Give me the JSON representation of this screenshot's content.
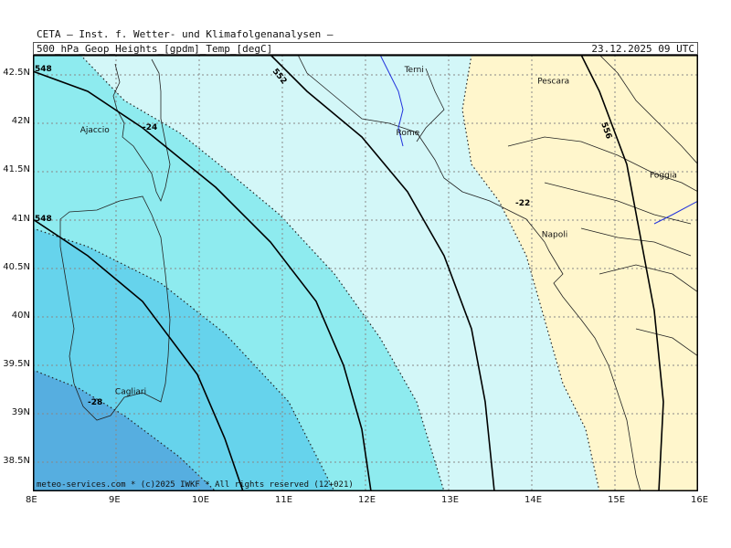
{
  "header": {
    "source": "CETA — Inst. f. Wetter- und Klimafolgenanalysen —",
    "product": "500_hPa_Geop_Heights_[gpdm]_Temp_[degC]",
    "datetime": "23.12.2025 09 UTC"
  },
  "credit": "meteo-services.com * (c)2025 IWKF * All rights reserved (12+021)",
  "axes": {
    "lon_labels": [
      "8E",
      "9E",
      "10E",
      "11E",
      "12E",
      "13E",
      "14E",
      "15E",
      "16E"
    ],
    "lat_labels": [
      "42.5N",
      "42N",
      "41.5N",
      "41N",
      "40.5N",
      "40N",
      "39.5N",
      "39N",
      "38.5N"
    ],
    "lon_range": [
      8,
      16
    ],
    "lat_range": [
      38.2,
      42.7
    ]
  },
  "cities": [
    {
      "name": "Terni",
      "lon": 12.6,
      "lat": 42.55
    },
    {
      "name": "Pescara",
      "lon": 14.2,
      "lat": 42.43
    },
    {
      "name": "Ajaccio",
      "lon": 8.7,
      "lat": 41.93
    },
    {
      "name": "Rome",
      "lon": 12.5,
      "lat": 41.9
    },
    {
      "name": "Foggia",
      "lon": 15.55,
      "lat": 41.46
    },
    {
      "name": "Napoli",
      "lon": 14.25,
      "lat": 40.85
    },
    {
      "name": "Cagliari",
      "lon": 9.12,
      "lat": 39.23
    }
  ],
  "contour_labels": {
    "geopotential": [
      "552",
      "556",
      "548",
      "548"
    ],
    "temperature": [
      "-24",
      "-22",
      "-28"
    ]
  },
  "colors": {
    "temp_lt_-28": "#56aee0",
    "temp_-28_-26": "#66d3ec",
    "temp_-26_-24": "#8eebef",
    "temp_-24_-22": "#d3f7f8",
    "temp_gt_-22": "#fff6cc",
    "coast": "#222222",
    "river": "#2233dd"
  }
}
